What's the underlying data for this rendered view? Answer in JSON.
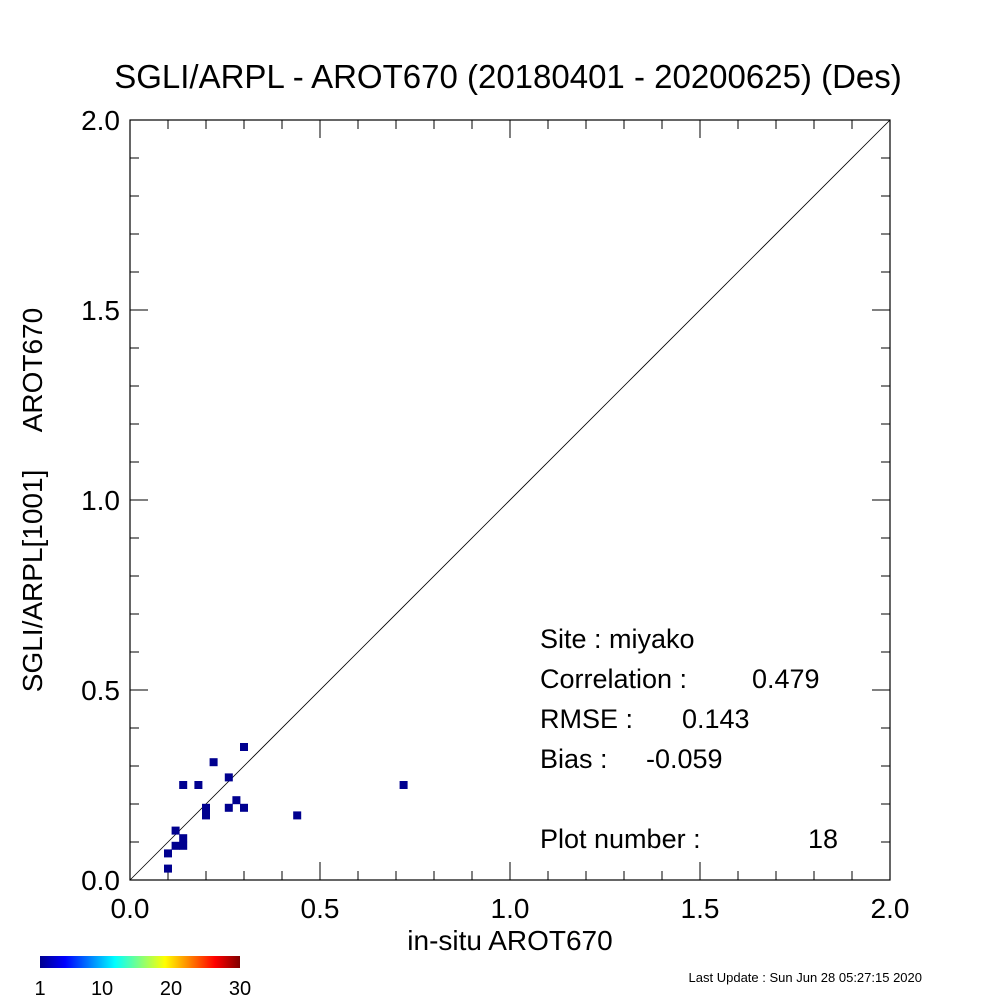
{
  "chart_data": {
    "type": "scatter",
    "title": "SGLI/ARPL - AROT670 (20180401 - 20200625) (Des)",
    "xlabel": "in-situ AROT670",
    "ylabel": "SGLI/ARPL[1001]     AROT670",
    "xlim": [
      0.0,
      2.0
    ],
    "ylim": [
      0.0,
      2.0
    ],
    "x_tick_labels": [
      "0.0",
      "0.5",
      "1.0",
      "1.5",
      "2.0"
    ],
    "y_tick_labels": [
      "0.0",
      "0.5",
      "1.0",
      "1.5",
      "2.0"
    ],
    "reference_line": "1:1",
    "grid": false,
    "points": [
      {
        "x": 0.1,
        "y": 0.03
      },
      {
        "x": 0.1,
        "y": 0.07
      },
      {
        "x": 0.12,
        "y": 0.09
      },
      {
        "x": 0.12,
        "y": 0.13
      },
      {
        "x": 0.14,
        "y": 0.09
      },
      {
        "x": 0.14,
        "y": 0.11
      },
      {
        "x": 0.14,
        "y": 0.25
      },
      {
        "x": 0.18,
        "y": 0.25
      },
      {
        "x": 0.2,
        "y": 0.17
      },
      {
        "x": 0.2,
        "y": 0.19
      },
      {
        "x": 0.22,
        "y": 0.31
      },
      {
        "x": 0.26,
        "y": 0.19
      },
      {
        "x": 0.26,
        "y": 0.27
      },
      {
        "x": 0.28,
        "y": 0.21
      },
      {
        "x": 0.3,
        "y": 0.19
      },
      {
        "x": 0.3,
        "y": 0.35
      },
      {
        "x": 0.44,
        "y": 0.17
      },
      {
        "x": 0.72,
        "y": 0.25
      }
    ],
    "point_color": "#00008f",
    "stats": {
      "site": "Site : miyako",
      "correlation_label": "Correlation :",
      "correlation_value": "0.479",
      "rmse_label": "RMSE :",
      "rmse_value": "0.143",
      "bias_label": "Bias :",
      "bias_value": "-0.059",
      "plot_number_label": "Plot number :",
      "plot_number_value": "18"
    },
    "colorbar": {
      "tick_labels": [
        "1",
        "10",
        "20",
        "30"
      ],
      "colormap": [
        "#00008f",
        "#0000ff",
        "#0080ff",
        "#00ffff",
        "#80ff80",
        "#ffff00",
        "#ff8000",
        "#ff0000",
        "#800000"
      ]
    }
  },
  "footer": "Last Update : Sun Jun 28 05:27:15 2020"
}
